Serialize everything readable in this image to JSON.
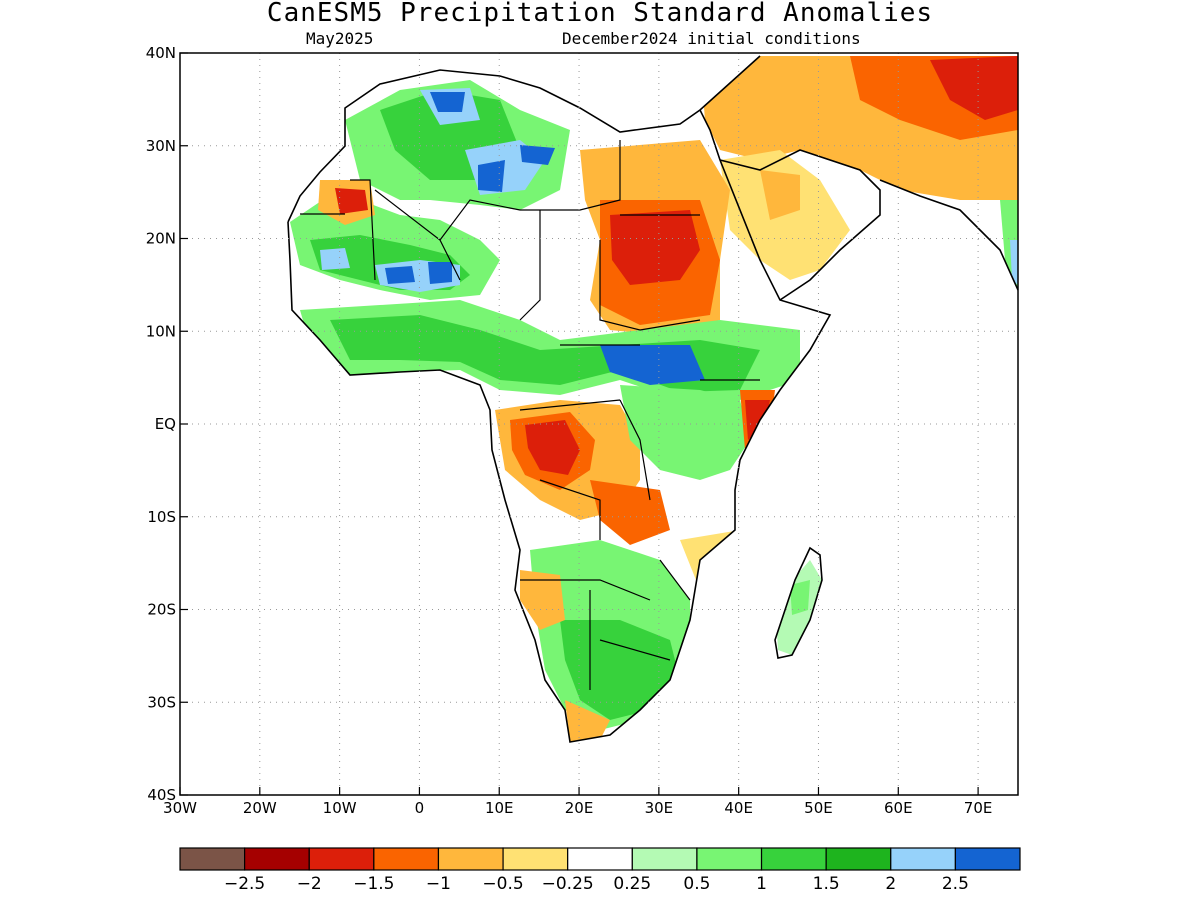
{
  "title": "CanESM5 Precipitation Standard Anomalies",
  "subtitle_left": "May2025",
  "subtitle_right": "December2024 initial conditions",
  "axes": {
    "lon_range": [
      -30,
      75
    ],
    "lat_range": [
      -40,
      40
    ],
    "x_ticks": [
      "30W",
      "20W",
      "10W",
      "0",
      "10E",
      "20E",
      "30E",
      "40E",
      "50E",
      "60E",
      "70E"
    ],
    "y_ticks": [
      "40N",
      "30N",
      "20N",
      "10N",
      "EQ",
      "10S",
      "20S",
      "30S",
      "40S"
    ],
    "grid": "dotted"
  },
  "colorbar": {
    "colors": [
      "#7b5447",
      "#a50000",
      "#dc1f0a",
      "#fa6400",
      "#ffb73c",
      "#ffe173",
      "#ffffff",
      "#b4fab4",
      "#78f573",
      "#37d23c",
      "#1eb41e",
      "#96d2fa",
      "#1464d2"
    ],
    "labels": [
      "-2.5",
      "-2",
      "-1.5",
      "-1",
      "-0.5",
      "-0.25",
      "0.25",
      "0.5",
      "1",
      "1.5",
      "2",
      "2.5"
    ]
  },
  "anomaly_regions": [
    {
      "lon": 30,
      "lat": 20,
      "value": -1.5
    },
    {
      "lon": 15,
      "lat": -3,
      "value": -1.5
    },
    {
      "lon": -11,
      "lat": 24,
      "value": -1.5
    },
    {
      "lon": 41,
      "lat": -1,
      "value": -1.5
    },
    {
      "lon": 68,
      "lat": 36,
      "value": -1.5
    },
    {
      "lon": 33,
      "lat": 7,
      "value": 2.5
    },
    {
      "lon": 3,
      "lat": 16,
      "value": 2.5
    },
    {
      "lon": 10,
      "lat": 27,
      "value": 2.5
    },
    {
      "lon": 5,
      "lat": 34,
      "value": 2
    },
    {
      "lon": 28,
      "lat": -25,
      "value": 1.5
    },
    {
      "lon": 10,
      "lat": 7,
      "value": 1
    }
  ]
}
